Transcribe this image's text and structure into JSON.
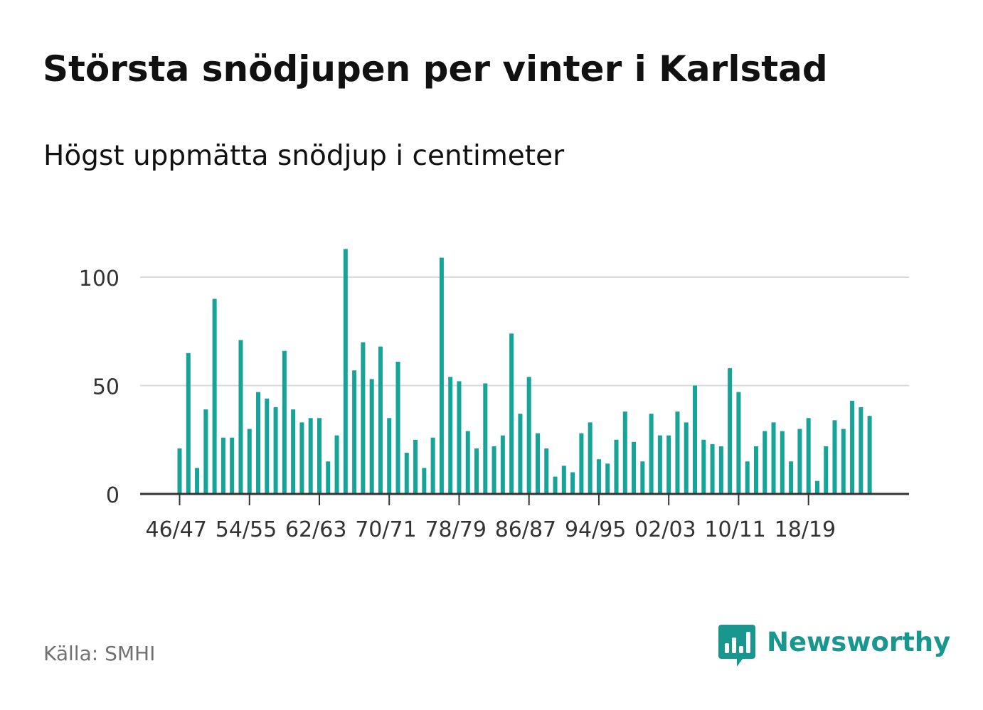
{
  "title": "Största snödjupen per vinter i Karlstad",
  "subtitle": "Högst uppmätta snödjup i centimeter",
  "source": "Källa: SMHI",
  "brand": {
    "name": "Newsworthy",
    "icon": "newsworthy-logo-icon",
    "color": "#18978f"
  },
  "colors": {
    "bar": "#16a398",
    "grid": "#d9d9d9",
    "axis": "#333333",
    "tick_text": "#333333"
  },
  "chart_data": {
    "type": "bar",
    "ylim": [
      0,
      120
    ],
    "y_ticks": [
      0,
      50,
      100
    ],
    "y_tick_labels": [
      "0",
      "50",
      "100"
    ],
    "grid": true,
    "x_tick_labels": [
      "46/47",
      "54/55",
      "62/63",
      "70/71",
      "78/79",
      "86/87",
      "94/95",
      "02/03",
      "10/11",
      "18/19"
    ],
    "categories": [
      "46/47",
      "47/48",
      "48/49",
      "49/50",
      "50/51",
      "51/52",
      "52/53",
      "53/54",
      "54/55",
      "55/56",
      "56/57",
      "57/58",
      "58/59",
      "59/60",
      "60/61",
      "61/62",
      "62/63",
      "63/64",
      "64/65",
      "65/66",
      "66/67",
      "67/68",
      "68/69",
      "69/70",
      "70/71",
      "71/72",
      "72/73",
      "73/74",
      "74/75",
      "75/76",
      "76/77",
      "77/78",
      "78/79",
      "79/80",
      "80/81",
      "81/82",
      "82/83",
      "83/84",
      "84/85",
      "85/86",
      "86/87",
      "87/88",
      "88/89",
      "89/90",
      "90/91",
      "91/92",
      "92/93",
      "93/94",
      "94/95",
      "95/96",
      "96/97",
      "97/98",
      "98/99",
      "99/00",
      "00/01",
      "01/02",
      "02/03",
      "03/04",
      "04/05",
      "05/06",
      "06/07",
      "07/08",
      "08/09",
      "09/10",
      "10/11",
      "11/12",
      "12/13",
      "13/14",
      "14/15",
      "15/16",
      "16/17",
      "17/18",
      "18/19",
      "19/20",
      "20/21",
      "21/22",
      "22/23",
      "23/24",
      "24/25",
      "25/26"
    ],
    "values": [
      21,
      65,
      12,
      39,
      90,
      26,
      26,
      71,
      30,
      47,
      44,
      40,
      66,
      39,
      33,
      35,
      35,
      15,
      27,
      113,
      57,
      70,
      53,
      68,
      35,
      61,
      19,
      25,
      12,
      26,
      109,
      54,
      52,
      29,
      21,
      51,
      22,
      27,
      74,
      37,
      54,
      28,
      21,
      8,
      13,
      10,
      28,
      33,
      16,
      14,
      25,
      38,
      24,
      15,
      37,
      27,
      27,
      38,
      33,
      50,
      25,
      23,
      22,
      58,
      47,
      15,
      22,
      29,
      33,
      29,
      15,
      30,
      35,
      6,
      22,
      34,
      30,
      43,
      40,
      36
    ]
  }
}
